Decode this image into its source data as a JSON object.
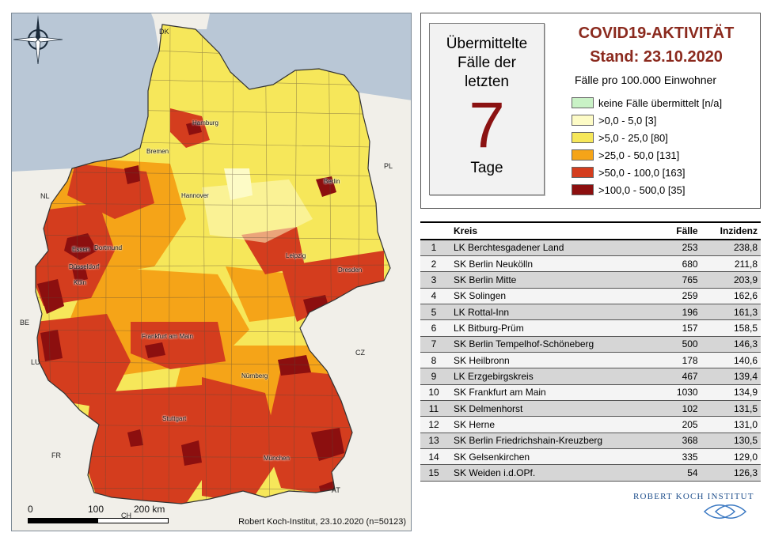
{
  "map": {
    "country_codes": [
      "DK",
      "PL",
      "NL",
      "BE",
      "LU",
      "CZ",
      "FR",
      "CH",
      "AT"
    ],
    "cities": [
      "Hamburg",
      "Bremen",
      "Berlin",
      "Hannover",
      "Dortmund",
      "Essen",
      "Düsseldorf",
      "Köln",
      "Leipzig",
      "Dresden",
      "Frankfurt am Main",
      "Nürnberg",
      "Stuttgart",
      "München"
    ],
    "credit": "Robert Koch-Institut, 23.10.2020 (n=50123)",
    "scale": {
      "zero": "0",
      "mid": "100",
      "end": "200 km"
    }
  },
  "info": {
    "headline_1": "COVID19-AKTIVITÄT",
    "headline_2": "Stand: 23.10.2020",
    "cases_label": "Übermittelte Fälle der letzten",
    "cases_number": "7",
    "cases_unit": "Tage",
    "legend_title": "Fälle pro 100.000 Einwohner",
    "legend": [
      {
        "label": "keine Fälle übermittelt [n/a]",
        "color": "#c9f2c6"
      },
      {
        "label": ">0,0 - 5,0 [3]",
        "color": "#fdfbc6"
      },
      {
        "label": ">5,0 - 25,0 [80]",
        "color": "#f6e75a"
      },
      {
        "label": ">25,0 - 50,0 [131]",
        "color": "#f5a418"
      },
      {
        "label": ">50,0 - 100,0 [163]",
        "color": "#d43d1e"
      },
      {
        "label": ">100,0 - 500,0 [35]",
        "color": "#8c0f0f"
      }
    ]
  },
  "table": {
    "headers": {
      "rank": "",
      "kreis": "Kreis",
      "faelle": "Fälle",
      "inzidenz": "Inzidenz"
    },
    "rows": [
      {
        "rank": "1",
        "kreis": "LK Berchtesgadener Land",
        "faelle": "253",
        "inzidenz": "238,8"
      },
      {
        "rank": "2",
        "kreis": "SK Berlin Neukölln",
        "faelle": "680",
        "inzidenz": "211,8"
      },
      {
        "rank": "3",
        "kreis": "SK Berlin Mitte",
        "faelle": "765",
        "inzidenz": "203,9"
      },
      {
        "rank": "4",
        "kreis": "SK Solingen",
        "faelle": "259",
        "inzidenz": "162,6"
      },
      {
        "rank": "5",
        "kreis": "LK Rottal-Inn",
        "faelle": "196",
        "inzidenz": "161,3"
      },
      {
        "rank": "6",
        "kreis": "LK Bitburg-Prüm",
        "faelle": "157",
        "inzidenz": "158,5"
      },
      {
        "rank": "7",
        "kreis": "SK Berlin Tempelhof-Schöneberg",
        "faelle": "500",
        "inzidenz": "146,3"
      },
      {
        "rank": "8",
        "kreis": "SK Heilbronn",
        "faelle": "178",
        "inzidenz": "140,6"
      },
      {
        "rank": "9",
        "kreis": "LK Erzgebirgskreis",
        "faelle": "467",
        "inzidenz": "139,4"
      },
      {
        "rank": "10",
        "kreis": "SK Frankfurt am Main",
        "faelle": "1030",
        "inzidenz": "134,9"
      },
      {
        "rank": "11",
        "kreis": "SK Delmenhorst",
        "faelle": "102",
        "inzidenz": "131,5"
      },
      {
        "rank": "12",
        "kreis": "SK Herne",
        "faelle": "205",
        "inzidenz": "131,0"
      },
      {
        "rank": "13",
        "kreis": "SK Berlin Friedrichshain-Kreuzberg",
        "faelle": "368",
        "inzidenz": "130,5"
      },
      {
        "rank": "14",
        "kreis": "SK Gelsenkirchen",
        "faelle": "335",
        "inzidenz": "129,0"
      },
      {
        "rank": "15",
        "kreis": "SK Weiden i.d.OPf.",
        "faelle": "54",
        "inzidenz": "126,3"
      }
    ]
  },
  "logo": {
    "text": "ROBERT KOCH INSTITUT"
  }
}
